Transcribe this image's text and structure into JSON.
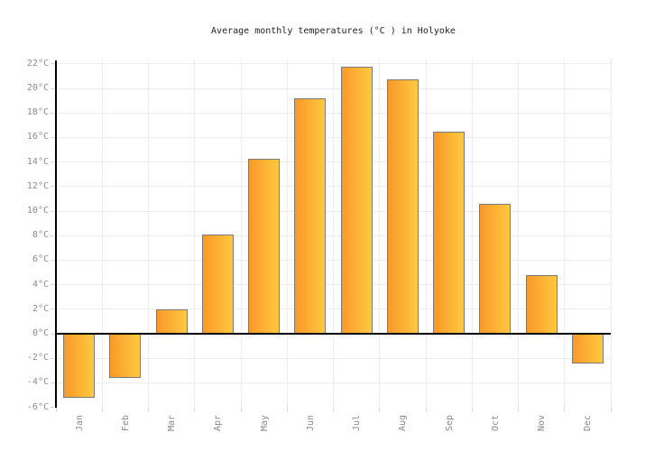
{
  "chart_data": {
    "type": "bar",
    "title": "Average monthly temperatures (°C ) in Holyoke",
    "xlabel": "",
    "ylabel": "",
    "categories": [
      "Jan",
      "Feb",
      "Mar",
      "Apr",
      "May",
      "Jun",
      "Jul",
      "Aug",
      "Sep",
      "Oct",
      "Nov",
      "Dec"
    ],
    "values": [
      -5.2,
      -3.6,
      2.0,
      8.1,
      14.3,
      19.2,
      21.8,
      20.7,
      16.5,
      10.6,
      4.8,
      -2.4
    ],
    "unit": "°C",
    "ylim": [
      -6,
      22
    ],
    "ytick_step": 2,
    "ytick_values": [
      22,
      20,
      18,
      16,
      14,
      12,
      10,
      8,
      6,
      4,
      2,
      0,
      -2,
      -4,
      -6
    ],
    "ytick_labels": [
      "22°C",
      "20°C",
      "18°C",
      "16°C",
      "14°C",
      "12°C",
      "10°C",
      "8°C",
      "6°C",
      "4°C",
      "2°C",
      "0°C",
      "-2°C",
      "-4°C",
      "-6°C"
    ],
    "grid": true,
    "legend": "none",
    "colors": {
      "bar_fill_left": "#F8992B",
      "bar_fill_right": "#FFC93E",
      "bar_border": "#7B7B7B",
      "axis_line": "#000000",
      "gridline": "#EDEDED",
      "tick": "#D8D8D8",
      "axis_label": "#8A8A8A",
      "title": "#222222",
      "background": "#FFFFFF"
    }
  }
}
